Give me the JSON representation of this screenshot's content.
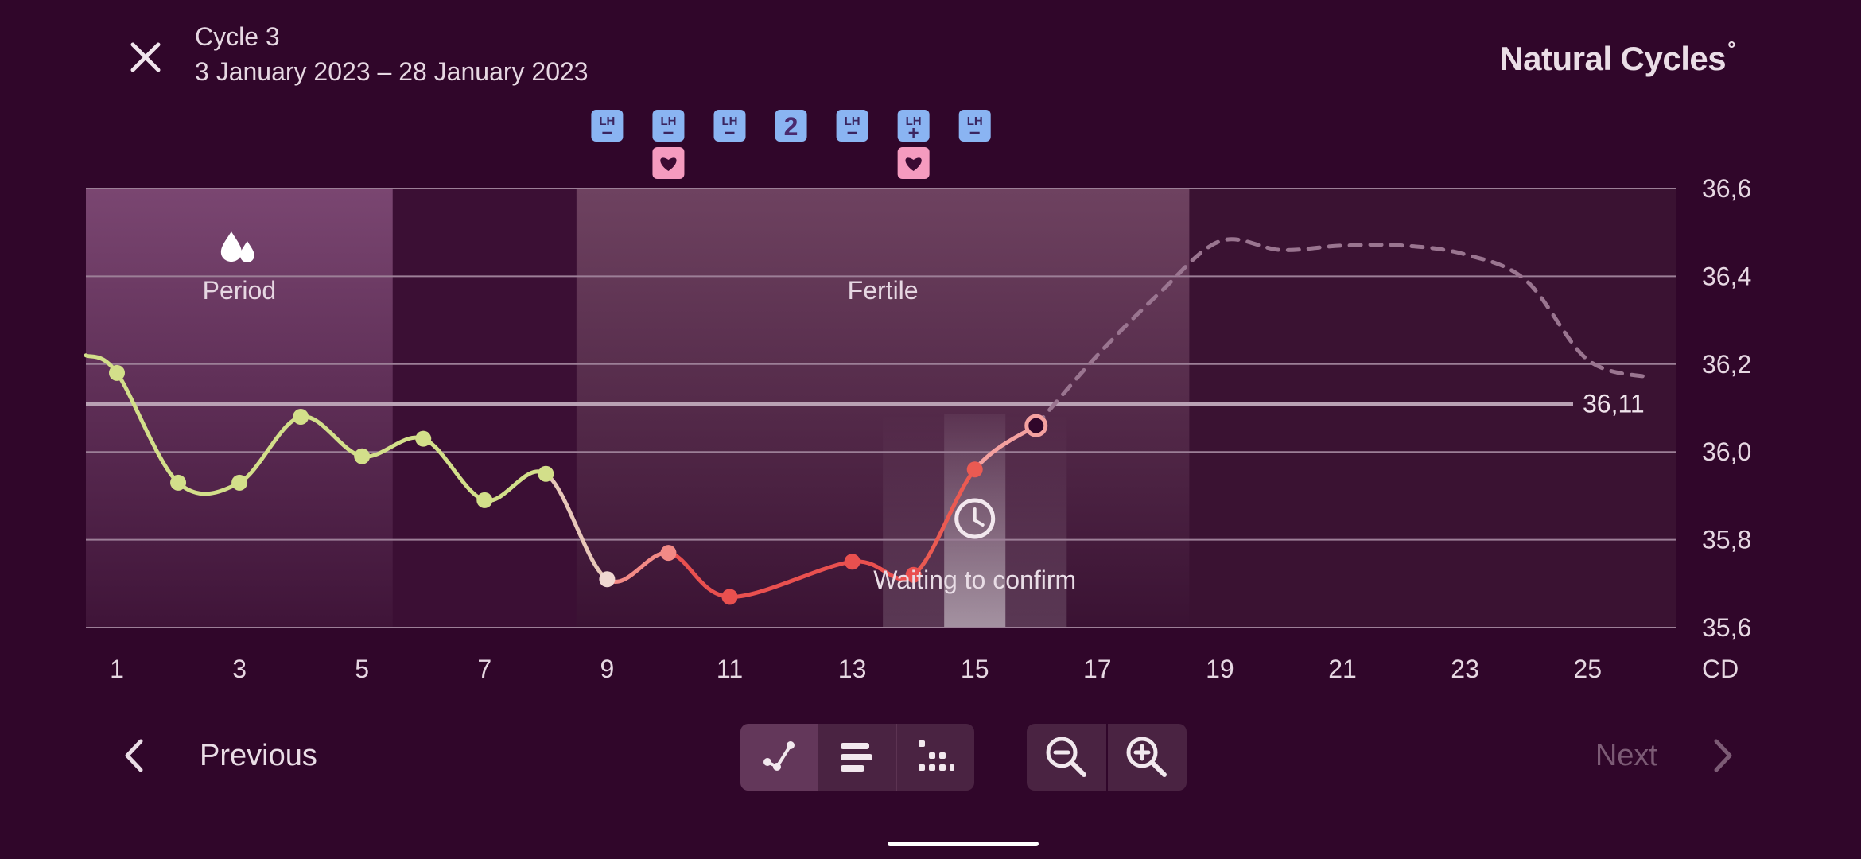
{
  "header": {
    "cycle_title": "Cycle 3",
    "cycle_range": "3 January 2023 – 28 January 2023",
    "brand": "Natural Cycles",
    "brand_mark": "°",
    "close_icon": "close-icon"
  },
  "bands": {
    "period_label": "Period",
    "fertile_label": "Fertile",
    "period_icon": "drops-icon"
  },
  "chart_data": {
    "type": "line",
    "x_label": "CD",
    "x_ticks": [
      "1",
      "3",
      "5",
      "7",
      "9",
      "11",
      "13",
      "15",
      "17",
      "19",
      "21",
      "23",
      "25"
    ],
    "x_range": [
      0.5,
      26.5
    ],
    "y_range": [
      35.6,
      36.6
    ],
    "y_ticks": [
      "36,6",
      "36,4",
      "36,2",
      "36,0",
      "35,8",
      "35,6"
    ],
    "grid": true,
    "coverline": {
      "value": 36.11,
      "label": "36,11"
    },
    "period_days": [
      1,
      5
    ],
    "fertile_days": [
      9,
      18
    ],
    "temperatures": [
      {
        "day": 1,
        "temp": 36.18,
        "color": "#d3df8a"
      },
      {
        "day": 2,
        "temp": 35.93,
        "color": "#d3df8a"
      },
      {
        "day": 3,
        "temp": 35.93,
        "color": "#d3df8a"
      },
      {
        "day": 4,
        "temp": 36.08,
        "color": "#d3df8a"
      },
      {
        "day": 5,
        "temp": 35.99,
        "color": "#d3df8a"
      },
      {
        "day": 6,
        "temp": 36.03,
        "color": "#d3df8a"
      },
      {
        "day": 7,
        "temp": 35.89,
        "color": "#d3df8a"
      },
      {
        "day": 8,
        "temp": 35.95,
        "color": "#d3df8a"
      },
      {
        "day": 9,
        "temp": 35.71,
        "color": "#f0d8d2"
      },
      {
        "day": 10,
        "temp": 35.77,
        "color": "#f28a86"
      },
      {
        "day": 11,
        "temp": 35.67,
        "color": "#e9504f"
      },
      {
        "day": 13,
        "temp": 35.75,
        "color": "#e9504f"
      },
      {
        "day": 14,
        "temp": 35.72,
        "color": "#e9504f"
      },
      {
        "day": 15,
        "temp": 35.96,
        "color": "#ea5a52"
      },
      {
        "day": 16,
        "temp": 36.06,
        "color": "#f4a1a0",
        "hollow": true
      }
    ],
    "prediction": [
      {
        "day": 16,
        "temp": 36.06
      },
      {
        "day": 17,
        "temp": 36.22
      },
      {
        "day": 18,
        "temp": 36.36
      },
      {
        "day": 19,
        "temp": 36.48
      },
      {
        "day": 20,
        "temp": 36.46
      },
      {
        "day": 21,
        "temp": 36.47
      },
      {
        "day": 22,
        "temp": 36.47
      },
      {
        "day": 23,
        "temp": 36.45
      },
      {
        "day": 24,
        "temp": 36.39
      },
      {
        "day": 25,
        "temp": 36.21
      },
      {
        "day": 26,
        "temp": 36.17
      }
    ],
    "waiting_label": "Waiting to confirm",
    "waiting_icon": "clock-icon",
    "lh_tests": [
      {
        "day": 9,
        "result": "negative"
      },
      {
        "day": 10,
        "result": "negative"
      },
      {
        "day": 11,
        "result": "negative"
      },
      {
        "day": 12,
        "result": "count",
        "label": "2"
      },
      {
        "day": 13,
        "result": "negative"
      },
      {
        "day": 14,
        "result": "positive"
      },
      {
        "day": 15,
        "result": "negative"
      }
    ],
    "sex_days": [
      10,
      14
    ],
    "lh_label": "LH",
    "colors": {
      "follicular": "#d3df8a",
      "fertile_line": "#e9504f",
      "prediction": "#9a7590",
      "lh_badge": "#8ab4f2",
      "heart_badge": "#f59bbf"
    }
  },
  "footer": {
    "previous_label": "Previous",
    "next_label": "Next",
    "view_buttons": [
      {
        "name": "graph-view-icon",
        "active": true
      },
      {
        "name": "list-view-icon",
        "active": false
      },
      {
        "name": "dots-view-icon",
        "active": false
      }
    ],
    "zoom_out_icon": "zoom-out-icon",
    "zoom_in_icon": "zoom-in-icon"
  }
}
